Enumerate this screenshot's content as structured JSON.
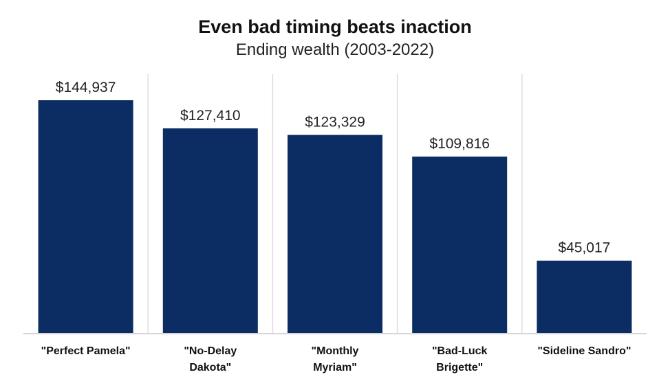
{
  "chart_data": {
    "type": "bar",
    "title": "Even bad timing beats inaction",
    "subtitle": "Ending wealth (2003-2022)",
    "categories": [
      [
        "\"Perfect Pamela\""
      ],
      [
        "\"No-Delay",
        "Dakota\""
      ],
      [
        "\"Monthly",
        "Myriam\""
      ],
      [
        "\"Bad-Luck",
        "Brigette\""
      ],
      [
        "\"Sideline Sandro\""
      ]
    ],
    "values": [
      144937,
      127410,
      123329,
      109816,
      45017
    ],
    "data_labels": [
      "$144,937",
      "$127,410",
      "$123,329",
      "$109,816",
      "$45,017"
    ],
    "xlabel": "",
    "ylabel": "",
    "ylim": [
      0,
      160000
    ],
    "grid": false,
    "legend": "none",
    "colors": {
      "bar": "#0b2d63",
      "divider": "#dcdcdc",
      "baseline": "#c8c8c8"
    }
  }
}
